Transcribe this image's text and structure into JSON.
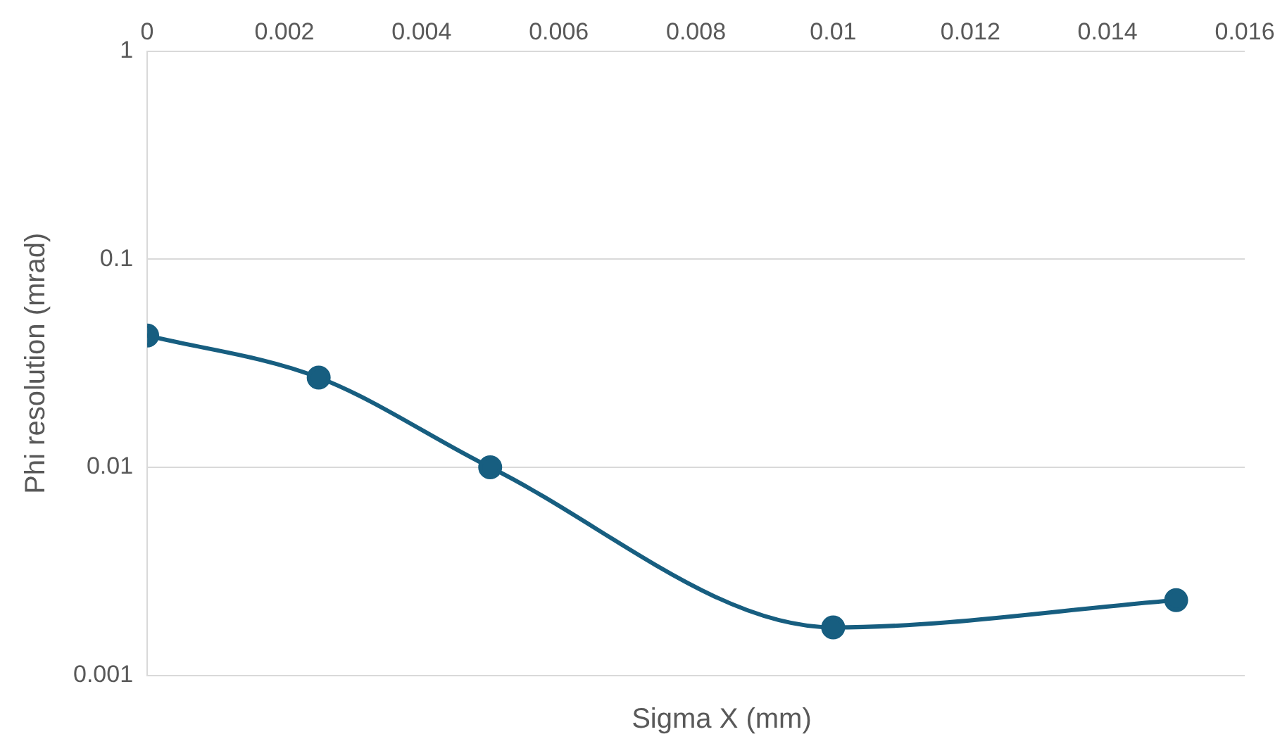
{
  "chart_data": {
    "type": "line",
    "xlabel": "Sigma X (mm)",
    "ylabel": "Phi resolution (mrad)",
    "x": [
      0,
      0.0025,
      0.005,
      0.01,
      0.015
    ],
    "series": [
      {
        "color": "#175e80",
        "values": [
          0.043,
          0.027,
          0.01,
          0.0017,
          0.0023
        ]
      }
    ],
    "xlim": [
      0,
      0.016
    ],
    "xticks": [
      0,
      0.002,
      0.004,
      0.006,
      0.008,
      0.01,
      0.012,
      0.014,
      0.016
    ],
    "ylim": [
      0.001,
      1
    ],
    "yticks": [
      0.001,
      0.01,
      0.1,
      1
    ],
    "log": "y",
    "grid": "y",
    "marker": "circle",
    "line_style": "solid",
    "legend": false
  }
}
